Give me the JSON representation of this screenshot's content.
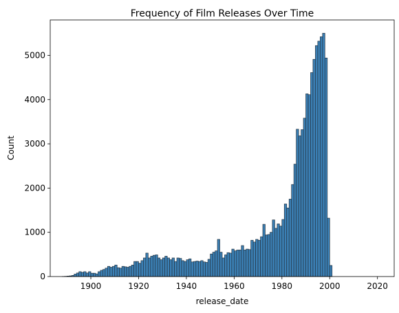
{
  "chart_data": {
    "type": "bar",
    "title": "Frequency of Film Releases Over Time",
    "xlabel": "release_date",
    "ylabel": "Count",
    "xlim": [
      1883,
      2027
    ],
    "ylim": [
      0,
      5800
    ],
    "xticks": [
      1900,
      1920,
      1940,
      1960,
      1980,
      2000,
      2020
    ],
    "yticks": [
      0,
      1000,
      2000,
      3000,
      4000,
      5000
    ],
    "bin_start": 1888,
    "bin_width": 1.0,
    "bar_color": "#3b80b5",
    "edge_color": "#24323f",
    "values": [
      2,
      5,
      10,
      15,
      25,
      55,
      80,
      110,
      95,
      110,
      80,
      110,
      75,
      75,
      60,
      110,
      140,
      160,
      190,
      230,
      210,
      230,
      260,
      200,
      190,
      230,
      220,
      210,
      230,
      260,
      340,
      340,
      300,
      360,
      420,
      530,
      420,
      460,
      480,
      490,
      420,
      380,
      420,
      460,
      420,
      380,
      420,
      340,
      420,
      410,
      360,
      340,
      380,
      400,
      330,
      340,
      350,
      340,
      360,
      330,
      320,
      390,
      510,
      550,
      580,
      840,
      550,
      420,
      490,
      540,
      530,
      620,
      580,
      600,
      600,
      700,
      600,
      620,
      610,
      820,
      780,
      840,
      820,
      900,
      1180,
      940,
      950,
      1000,
      1280,
      1090,
      1190,
      1140,
      1290,
      1640,
      1550,
      1750,
      2080,
      2540,
      3330,
      3180,
      3320,
      3580,
      4130,
      4110,
      4610,
      4910,
      5220,
      5320,
      5420,
      5500,
      4940,
      1320,
      250
    ]
  }
}
